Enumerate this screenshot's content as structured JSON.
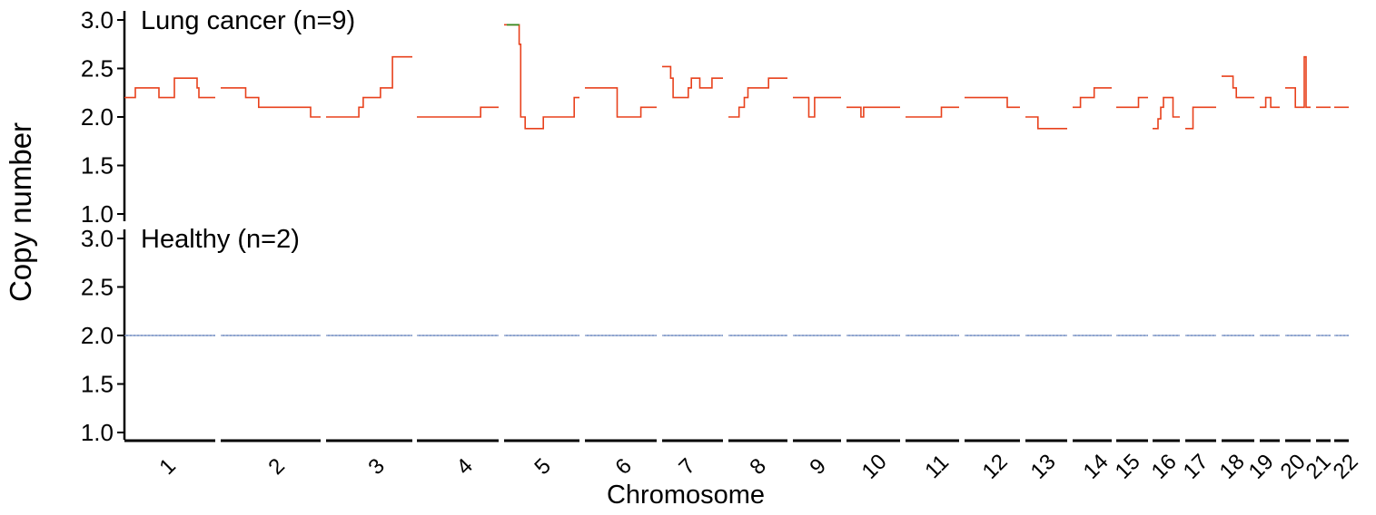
{
  "chart_data": {
    "type": "line",
    "ylabel": "Copy number",
    "xlabel": "Chromosome",
    "ylim": [
      1.0,
      3.0
    ],
    "yticks": [
      "1.0",
      "1.5",
      "2.0",
      "2.5",
      "3.0"
    ],
    "chromosomes": [
      "1",
      "2",
      "3",
      "4",
      "5",
      "6",
      "7",
      "8",
      "9",
      "10",
      "11",
      "12",
      "13",
      "14",
      "15",
      "16",
      "17",
      "18",
      "19",
      "20",
      "21",
      "22"
    ],
    "panels": [
      {
        "title": "Lung cancer (n=9)",
        "color": "#e8411c",
        "highlight_color": "#3a8a1f",
        "segments": [
          {
            "chr": "1",
            "steps": [
              [
                0.0,
                2.2
              ],
              [
                0.12,
                2.3
              ],
              [
                0.38,
                2.2
              ],
              [
                0.55,
                2.4
              ],
              [
                0.8,
                2.3
              ],
              [
                0.82,
                2.2
              ],
              [
                1.0,
                2.2
              ]
            ]
          },
          {
            "chr": "2",
            "steps": [
              [
                0.0,
                2.3
              ],
              [
                0.25,
                2.2
              ],
              [
                0.38,
                2.1
              ],
              [
                0.9,
                2.0
              ],
              [
                1.0,
                2.0
              ]
            ]
          },
          {
            "chr": "3",
            "steps": [
              [
                0.0,
                2.0
              ],
              [
                0.38,
                2.1
              ],
              [
                0.43,
                2.2
              ],
              [
                0.63,
                2.3
              ],
              [
                0.77,
                2.62
              ],
              [
                1.0,
                2.62
              ]
            ]
          },
          {
            "chr": "4",
            "steps": [
              [
                0.0,
                2.0
              ],
              [
                0.78,
                2.1
              ],
              [
                1.0,
                2.1
              ]
            ]
          },
          {
            "chr": "5",
            "steps": [
              [
                0.0,
                2.95
              ],
              [
                0.2,
                2.75
              ],
              [
                0.22,
                2.0
              ],
              [
                0.28,
                1.88
              ],
              [
                0.52,
                2.0
              ],
              [
                0.93,
                2.2
              ],
              [
                1.0,
                2.2
              ]
            ]
          },
          {
            "chr": "6",
            "steps": [
              [
                0.0,
                2.3
              ],
              [
                0.45,
                2.0
              ],
              [
                0.78,
                2.1
              ],
              [
                1.0,
                2.1
              ]
            ]
          },
          {
            "chr": "7",
            "steps": [
              [
                0.0,
                2.52
              ],
              [
                0.14,
                2.4
              ],
              [
                0.18,
                2.2
              ],
              [
                0.43,
                2.3
              ],
              [
                0.48,
                2.4
              ],
              [
                0.62,
                2.3
              ],
              [
                0.82,
                2.4
              ],
              [
                1.0,
                2.4
              ]
            ]
          },
          {
            "chr": "8",
            "steps": [
              [
                0.0,
                2.0
              ],
              [
                0.18,
                2.1
              ],
              [
                0.27,
                2.2
              ],
              [
                0.33,
                2.3
              ],
              [
                0.68,
                2.4
              ],
              [
                1.0,
                2.4
              ]
            ]
          },
          {
            "chr": "9",
            "steps": [
              [
                0.0,
                2.2
              ],
              [
                0.33,
                2.0
              ],
              [
                0.45,
                2.2
              ],
              [
                1.0,
                2.2
              ]
            ]
          },
          {
            "chr": "10",
            "steps": [
              [
                0.0,
                2.1
              ],
              [
                0.27,
                2.0
              ],
              [
                0.32,
                2.1
              ],
              [
                1.0,
                2.1
              ]
            ]
          },
          {
            "chr": "11",
            "steps": [
              [
                0.0,
                2.0
              ],
              [
                0.67,
                2.1
              ],
              [
                1.0,
                2.1
              ]
            ]
          },
          {
            "chr": "12",
            "steps": [
              [
                0.0,
                2.2
              ],
              [
                0.77,
                2.1
              ],
              [
                1.0,
                2.1
              ]
            ]
          },
          {
            "chr": "13",
            "steps": [
              [
                0.0,
                2.0
              ],
              [
                0.3,
                1.88
              ],
              [
                1.0,
                1.88
              ]
            ]
          },
          {
            "chr": "14",
            "steps": [
              [
                0.0,
                2.1
              ],
              [
                0.2,
                2.2
              ],
              [
                0.55,
                2.3
              ],
              [
                1.0,
                2.3
              ]
            ]
          },
          {
            "chr": "15",
            "steps": [
              [
                0.0,
                2.1
              ],
              [
                0.7,
                2.2
              ],
              [
                1.0,
                2.2
              ]
            ]
          },
          {
            "chr": "16",
            "steps": [
              [
                0.0,
                1.88
              ],
              [
                0.2,
                1.98
              ],
              [
                0.3,
                2.1
              ],
              [
                0.4,
                2.2
              ],
              [
                0.75,
                2.0
              ],
              [
                1.0,
                2.0
              ]
            ]
          },
          {
            "chr": "17",
            "steps": [
              [
                0.0,
                1.88
              ],
              [
                0.25,
                2.1
              ],
              [
                1.0,
                2.1
              ]
            ]
          },
          {
            "chr": "18",
            "steps": [
              [
                0.0,
                2.42
              ],
              [
                0.35,
                2.3
              ],
              [
                0.45,
                2.2
              ],
              [
                1.0,
                2.2
              ]
            ]
          },
          {
            "chr": "19",
            "steps": [
              [
                0.0,
                2.1
              ],
              [
                0.3,
                2.2
              ],
              [
                0.55,
                2.1
              ],
              [
                1.0,
                2.1
              ]
            ]
          },
          {
            "chr": "20",
            "steps": [
              [
                0.0,
                2.3
              ],
              [
                0.4,
                2.1
              ],
              [
                0.75,
                2.62
              ],
              [
                0.82,
                2.1
              ],
              [
                1.0,
                2.1
              ]
            ]
          },
          {
            "chr": "21",
            "steps": [
              [
                0.0,
                2.1
              ],
              [
                1.0,
                2.1
              ]
            ]
          },
          {
            "chr": "22",
            "steps": [
              [
                0.0,
                2.1
              ],
              [
                1.0,
                2.1
              ]
            ]
          }
        ]
      },
      {
        "title": "Healthy (n=2)",
        "color": "#4a6fb5",
        "segments": [
          {
            "chr": "1",
            "steps": [
              [
                0.0,
                2.0
              ],
              [
                1.0,
                2.0
              ]
            ]
          },
          {
            "chr": "2",
            "steps": [
              [
                0.0,
                2.0
              ],
              [
                1.0,
                2.0
              ]
            ]
          },
          {
            "chr": "3",
            "steps": [
              [
                0.0,
                2.0
              ],
              [
                1.0,
                2.0
              ]
            ]
          },
          {
            "chr": "4",
            "steps": [
              [
                0.0,
                2.0
              ],
              [
                1.0,
                2.0
              ]
            ]
          },
          {
            "chr": "5",
            "steps": [
              [
                0.0,
                2.0
              ],
              [
                1.0,
                2.0
              ]
            ]
          },
          {
            "chr": "6",
            "steps": [
              [
                0.0,
                2.0
              ],
              [
                1.0,
                2.0
              ]
            ]
          },
          {
            "chr": "7",
            "steps": [
              [
                0.0,
                2.0
              ],
              [
                1.0,
                2.0
              ]
            ]
          },
          {
            "chr": "8",
            "steps": [
              [
                0.0,
                2.0
              ],
              [
                1.0,
                2.0
              ]
            ]
          },
          {
            "chr": "9",
            "steps": [
              [
                0.0,
                2.0
              ],
              [
                1.0,
                2.0
              ]
            ]
          },
          {
            "chr": "10",
            "steps": [
              [
                0.0,
                2.0
              ],
              [
                1.0,
                2.0
              ]
            ]
          },
          {
            "chr": "11",
            "steps": [
              [
                0.0,
                2.0
              ],
              [
                1.0,
                2.0
              ]
            ]
          },
          {
            "chr": "12",
            "steps": [
              [
                0.0,
                2.0
              ],
              [
                1.0,
                2.0
              ]
            ]
          },
          {
            "chr": "13",
            "steps": [
              [
                0.0,
                2.0
              ],
              [
                1.0,
                2.0
              ]
            ]
          },
          {
            "chr": "14",
            "steps": [
              [
                0.0,
                2.0
              ],
              [
                1.0,
                2.0
              ]
            ]
          },
          {
            "chr": "15",
            "steps": [
              [
                0.0,
                2.0
              ],
              [
                1.0,
                2.0
              ]
            ]
          },
          {
            "chr": "16",
            "steps": [
              [
                0.0,
                2.0
              ],
              [
                1.0,
                2.0
              ]
            ]
          },
          {
            "chr": "17",
            "steps": [
              [
                0.0,
                2.0
              ],
              [
                1.0,
                2.0
              ]
            ]
          },
          {
            "chr": "18",
            "steps": [
              [
                0.0,
                2.0
              ],
              [
                1.0,
                2.0
              ]
            ]
          },
          {
            "chr": "19",
            "steps": [
              [
                0.0,
                2.0
              ],
              [
                1.0,
                2.0
              ]
            ]
          },
          {
            "chr": "20",
            "steps": [
              [
                0.0,
                2.0
              ],
              [
                1.0,
                2.0
              ]
            ]
          },
          {
            "chr": "21",
            "steps": [
              [
                0.0,
                2.0
              ],
              [
                1.0,
                2.0
              ]
            ]
          },
          {
            "chr": "22",
            "steps": [
              [
                0.0,
                2.0
              ],
              [
                1.0,
                2.0
              ]
            ]
          }
        ]
      }
    ]
  }
}
